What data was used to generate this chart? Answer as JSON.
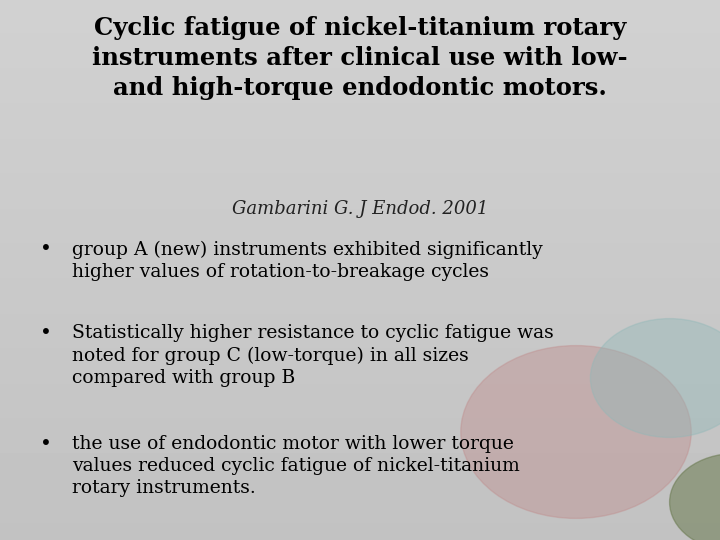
{
  "title_line1": "Cyclic fatigue of nickel-titanium rotary",
  "title_line2": "instruments after clinical use with low-",
  "title_line3": "and high-torque endodontic motors.",
  "citation": "Gambarini G. J Endod. 2001",
  "bullet1_line1": "group A (new) instruments exhibited significantly",
  "bullet1_line2": "higher values of rotation-to-breakage cycles",
  "bullet2_line1": "Statistically higher resistance to cyclic fatigue was",
  "bullet2_line2": "noted for group C (low-torque) in all sizes",
  "bullet2_line3": "compared with group B",
  "bullet3_line1": "the use of endodontic motor with lower torque",
  "bullet3_line2": "values reduced cyclic fatigue of nickel-titanium",
  "bullet3_line3": "rotary instruments.",
  "title_color": "#000000",
  "body_color": "#000000",
  "citation_color": "#222222",
  "bg_top": "#c8c5c8",
  "bg_bottom": "#d8d5d8",
  "circle1_color": "#c09090",
  "circle1_alpha": 0.45,
  "circle2_color": "#90b8b8",
  "circle2_alpha": 0.4,
  "circle3_color": "#6a7a50",
  "circle3_alpha": 0.55,
  "title_fontsize": 17.5,
  "citation_fontsize": 13,
  "bullet_fontsize": 13.5,
  "bullet_char": "•"
}
